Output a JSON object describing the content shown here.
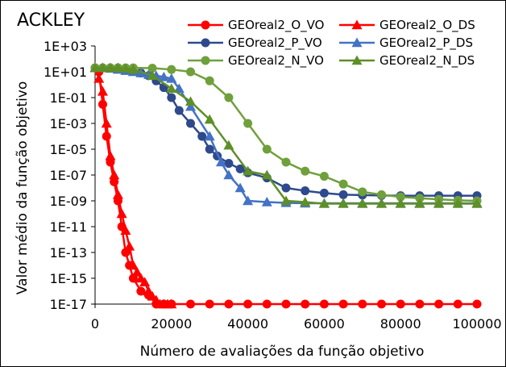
{
  "chart_data": {
    "type": "line",
    "title": "ACKLEY",
    "xlabel": "Número de avaliações da função objetivo",
    "ylabel": "Valor médio da função objetivo",
    "xlim": [
      0,
      100000
    ],
    "ylim_exponent": [
      -17,
      3
    ],
    "y_scale": "log10",
    "grid": false,
    "legend_position": "top",
    "x_ticks": [
      0,
      20000,
      40000,
      60000,
      80000,
      100000
    ],
    "x_tick_labels": [
      "0",
      "20000",
      "40000",
      "60000",
      "80000",
      "100000"
    ],
    "y_tick_exponents": [
      3,
      1,
      -1,
      -3,
      -5,
      -7,
      -9,
      -11,
      -13,
      -15,
      -17
    ],
    "y_tick_labels": [
      "1E+03",
      "1E+01",
      "1E-01",
      "1E-03",
      "1E-05",
      "1E-07",
      "1E-09",
      "1E-11",
      "1E-13",
      "1E-15",
      "1E-17"
    ],
    "series": [
      {
        "name": "GEOreal2_O_VO",
        "color": "#ff0000",
        "marker": "circle",
        "x": [
          0,
          1000,
          2000,
          3000,
          4000,
          5000,
          6000,
          7000,
          8000,
          9000,
          10000,
          12000,
          14000,
          16000,
          18000,
          20000,
          25000,
          30000,
          35000,
          40000,
          45000,
          50000,
          55000,
          60000,
          65000,
          70000,
          75000,
          80000,
          85000,
          90000,
          95000,
          100000
        ],
        "y": [
          20,
          10,
          0.03,
          0.0001,
          1e-06,
          3e-08,
          1e-09,
          1e-11,
          1e-13,
          1e-14,
          1e-15,
          1e-16,
          5e-17,
          1e-17,
          1e-17,
          1e-17,
          1e-17,
          1e-17,
          1e-17,
          1e-17,
          1e-17,
          1e-17,
          1e-17,
          1e-17,
          1e-17,
          1e-17,
          1e-17,
          1e-17,
          1e-17,
          1e-17,
          1e-17,
          1e-17
        ]
      },
      {
        "name": "GEOreal2_O_DS",
        "color": "#ff0000",
        "marker": "triangle",
        "x": [
          0,
          1000,
          2000,
          3000,
          4000,
          5000,
          6000,
          7000,
          8000,
          9000,
          10000,
          11000,
          12000,
          13000,
          14000,
          15000,
          16000,
          17000,
          18000,
          19000,
          20000
        ],
        "y": [
          20,
          3,
          0.3,
          0.001,
          3e-06,
          1e-07,
          3e-09,
          1e-10,
          5e-12,
          3e-13,
          1e-14,
          3e-15,
          1e-15,
          5e-16,
          1e-16,
          4e-17,
          2e-17,
          1e-17,
          1e-17,
          1e-17,
          1e-17
        ]
      },
      {
        "name": "GEOreal2_P_VO",
        "color": "#2e4a8c",
        "marker": "circle",
        "x": [
          0,
          2000,
          4000,
          6000,
          8000,
          10000,
          12000,
          14000,
          16000,
          18000,
          20000,
          22000,
          25000,
          28000,
          30000,
          32000,
          35000,
          38000,
          40000,
          45000,
          50000,
          55000,
          60000,
          65000,
          70000,
          75000,
          80000,
          85000,
          90000,
          95000,
          100000
        ],
        "y": [
          20,
          20,
          20,
          20,
          18,
          12,
          8,
          5,
          2,
          0.6,
          0.1,
          0.01,
          0.001,
          0.0001,
          1e-05,
          3e-06,
          8e-07,
          3e-07,
          1.5e-07,
          6e-08,
          1e-08,
          6e-09,
          4e-09,
          3e-09,
          2.8e-09,
          2.6e-09,
          2.5e-09,
          2.5e-09,
          2.5e-09,
          2.5e-09,
          2.5e-09
        ]
      },
      {
        "name": "GEOreal2_P_DS",
        "color": "#4472c4",
        "marker": "triangle",
        "x": [
          0,
          2000,
          4000,
          6000,
          8000,
          10000,
          12000,
          14000,
          16000,
          18000,
          20000,
          22000,
          25000,
          30000,
          33000,
          35000,
          38000,
          40000,
          45000,
          50000,
          55000,
          60000,
          65000,
          70000,
          75000,
          80000,
          85000,
          90000,
          95000,
          100000
        ],
        "y": [
          20,
          20,
          18,
          15,
          12,
          10,
          8,
          6,
          5,
          4,
          3,
          0.5,
          0.02,
          0.0001,
          1e-06,
          1e-07,
          1e-08,
          1e-09,
          8e-10,
          7e-10,
          6.5e-10,
          6.5e-10,
          6.5e-10,
          6.5e-10,
          6.5e-10,
          6.5e-10,
          6.5e-10,
          6.5e-10,
          6.5e-10,
          6.5e-10
        ]
      },
      {
        "name": "GEOreal2_N_VO",
        "color": "#70a03c",
        "marker": "circle",
        "x": [
          0,
          2000,
          4000,
          6000,
          8000,
          10000,
          15000,
          20000,
          25000,
          30000,
          35000,
          40000,
          45000,
          50000,
          55000,
          60000,
          65000,
          70000,
          75000,
          80000,
          85000,
          90000,
          95000,
          100000
        ],
        "y": [
          20,
          20,
          20,
          20,
          20,
          20,
          19,
          15,
          10,
          2,
          0.1,
          0.001,
          1e-05,
          1e-06,
          2e-07,
          8e-08,
          2e-08,
          5e-09,
          3e-09,
          2e-09,
          1.6e-09,
          1.3e-09,
          1.1e-09,
          1e-09
        ]
      },
      {
        "name": "GEOreal2_N_DS",
        "color": "#5e8f28",
        "marker": "triangle",
        "x": [
          0,
          2000,
          4000,
          6000,
          8000,
          10000,
          15000,
          20000,
          25000,
          30000,
          35000,
          40000,
          45000,
          50000,
          55000,
          60000,
          65000,
          70000,
          75000,
          80000,
          85000,
          90000,
          95000,
          100000
        ],
        "y": [
          20,
          20,
          20,
          20,
          18,
          15,
          5,
          0.5,
          0.05,
          0.002,
          2e-05,
          2e-07,
          1e-07,
          1e-09,
          8e-10,
          6e-10,
          6e-10,
          6e-10,
          6e-10,
          6e-10,
          6e-10,
          6e-10,
          6e-10,
          6e-10
        ]
      }
    ]
  }
}
